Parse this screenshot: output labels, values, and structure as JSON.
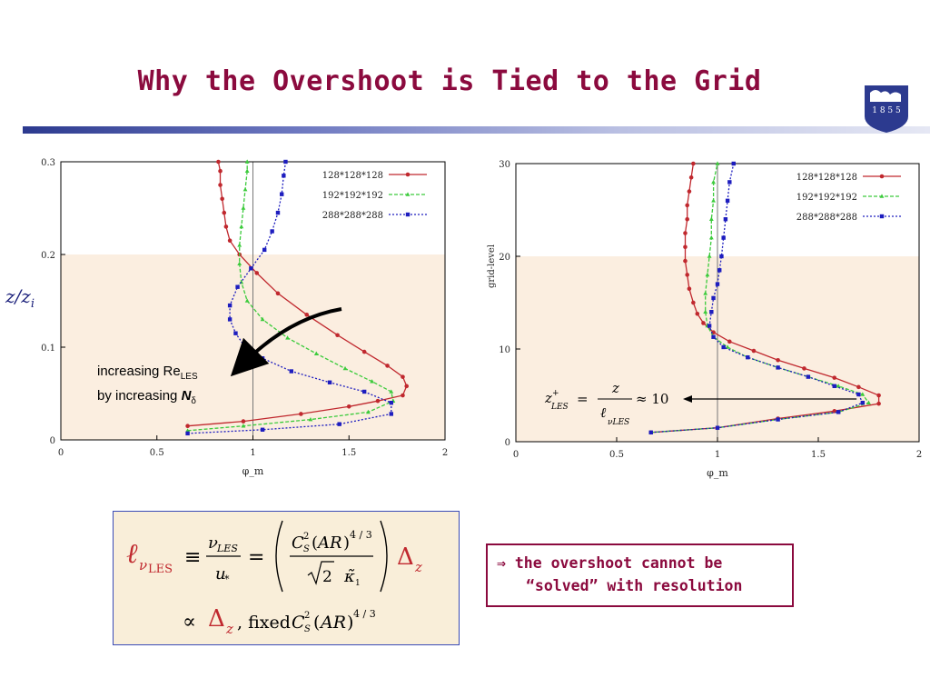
{
  "slide": {
    "title": "Why the Overshoot is Tied to the Grid",
    "seal_text": "1 8 5 5",
    "side_label_z": "z/z",
    "side_label_i": "i",
    "annotation_line1": "increasing Re",
    "annotation_sub1": "LES",
    "annotation_line2": "by increasing ",
    "annotation_bold2": "N",
    "annotation_sub2": "δ",
    "note_line1": "⇒ the overshoot cannot be",
    "note_line2": "“solved” with resolution",
    "colors": {
      "title": "#8b0a3e",
      "band": "#fbeee0",
      "red": "#c0282e",
      "green": "#3ccb3c",
      "blue": "#1d1dbf"
    }
  },
  "chart_data": [
    {
      "type": "line",
      "xlabel": "φ_m",
      "ylabel": "",
      "xlim": [
        0,
        2
      ],
      "ylim": [
        0,
        0.3
      ],
      "xticks": [
        "0",
        "0.5",
        "1",
        "1.5",
        "2"
      ],
      "yticks": [
        "0",
        "0.1",
        "0.2",
        "0.3"
      ],
      "grid": false,
      "legend": "top-right",
      "shaded_band": [
        0,
        0.2
      ],
      "vertical_line_x": 1,
      "series": [
        {
          "name": "128*128*128",
          "color": "#c0282e",
          "style": "solid",
          "points": [
            [
              0.66,
              0.015
            ],
            [
              0.95,
              0.02
            ],
            [
              1.25,
              0.028
            ],
            [
              1.5,
              0.036
            ],
            [
              1.65,
              0.042
            ],
            [
              1.78,
              0.048
            ],
            [
              1.8,
              0.058
            ],
            [
              1.78,
              0.068
            ],
            [
              1.7,
              0.08
            ],
            [
              1.58,
              0.095
            ],
            [
              1.44,
              0.113
            ],
            [
              1.28,
              0.135
            ],
            [
              1.13,
              0.158
            ],
            [
              1.02,
              0.18
            ],
            [
              0.93,
              0.2
            ],
            [
              0.88,
              0.215
            ],
            [
              0.86,
              0.23
            ],
            [
              0.85,
              0.245
            ],
            [
              0.84,
              0.26
            ],
            [
              0.83,
              0.275
            ],
            [
              0.83,
              0.29
            ],
            [
              0.82,
              0.3
            ]
          ]
        },
        {
          "name": "192*192*192",
          "color": "#3ccb3c",
          "style": "dashed",
          "points": [
            [
              0.66,
              0.01
            ],
            [
              0.95,
              0.015
            ],
            [
              1.3,
              0.022
            ],
            [
              1.6,
              0.03
            ],
            [
              1.73,
              0.042
            ],
            [
              1.72,
              0.052
            ],
            [
              1.62,
              0.063
            ],
            [
              1.48,
              0.077
            ],
            [
              1.33,
              0.093
            ],
            [
              1.18,
              0.11
            ],
            [
              1.05,
              0.13
            ],
            [
              0.97,
              0.15
            ],
            [
              0.94,
              0.17
            ],
            [
              0.93,
              0.19
            ],
            [
              0.93,
              0.21
            ],
            [
              0.94,
              0.23
            ],
            [
              0.95,
              0.25
            ],
            [
              0.96,
              0.27
            ],
            [
              0.97,
              0.29
            ],
            [
              0.97,
              0.3
            ]
          ]
        },
        {
          "name": "288*288*288",
          "color": "#1d1dbf",
          "style": "dotted",
          "points": [
            [
              0.66,
              0.007
            ],
            [
              1.05,
              0.011
            ],
            [
              1.45,
              0.017
            ],
            [
              1.72,
              0.028
            ],
            [
              1.72,
              0.04
            ],
            [
              1.58,
              0.052
            ],
            [
              1.4,
              0.062
            ],
            [
              1.2,
              0.074
            ],
            [
              1.05,
              0.088
            ],
            [
              0.96,
              0.1
            ],
            [
              0.91,
              0.115
            ],
            [
              0.88,
              0.13
            ],
            [
              0.88,
              0.145
            ],
            [
              0.92,
              0.165
            ],
            [
              0.99,
              0.185
            ],
            [
              1.06,
              0.205
            ],
            [
              1.1,
              0.225
            ],
            [
              1.13,
              0.245
            ],
            [
              1.15,
              0.265
            ],
            [
              1.16,
              0.285
            ],
            [
              1.17,
              0.3
            ]
          ]
        }
      ]
    },
    {
      "type": "line",
      "xlabel": "φ_m",
      "ylabel": "grid-level",
      "xlim": [
        0,
        2
      ],
      "ylim": [
        0,
        30
      ],
      "xticks": [
        "0",
        "0.5",
        "1",
        "1.5",
        "2"
      ],
      "yticks": [
        "0",
        "10",
        "20",
        "30"
      ],
      "grid": false,
      "legend": "top-right",
      "shaded_band": [
        0,
        20
      ],
      "vertical_line_x": 1,
      "series": [
        {
          "name": "128*128*128",
          "color": "#c0282e",
          "style": "solid",
          "points": [
            [
              0.67,
              1
            ],
            [
              1.0,
              1.5
            ],
            [
              1.3,
              2.5
            ],
            [
              1.58,
              3.3
            ],
            [
              1.8,
              4.1
            ],
            [
              1.8,
              5
            ],
            [
              1.7,
              5.9
            ],
            [
              1.58,
              6.9
            ],
            [
              1.43,
              7.9
            ],
            [
              1.3,
              8.8
            ],
            [
              1.18,
              9.8
            ],
            [
              1.06,
              10.8
            ],
            [
              0.98,
              11.8
            ],
            [
              0.93,
              12.8
            ],
            [
              0.9,
              13.8
            ],
            [
              0.88,
              15
            ],
            [
              0.86,
              16.5
            ],
            [
              0.85,
              18
            ],
            [
              0.84,
              19.5
            ],
            [
              0.84,
              21
            ],
            [
              0.84,
              22.5
            ],
            [
              0.85,
              24
            ],
            [
              0.85,
              25.5
            ],
            [
              0.86,
              27
            ],
            [
              0.87,
              28.5
            ],
            [
              0.88,
              30
            ]
          ]
        },
        {
          "name": "192*192*192",
          "color": "#3ccb3c",
          "style": "dashed",
          "points": [
            [
              0.67,
              1
            ],
            [
              1.0,
              1.5
            ],
            [
              1.3,
              2.4
            ],
            [
              1.6,
              3.2
            ],
            [
              1.75,
              4.2
            ],
            [
              1.72,
              5.1
            ],
            [
              1.6,
              6
            ],
            [
              1.45,
              7
            ],
            [
              1.3,
              8
            ],
            [
              1.15,
              9.1
            ],
            [
              1.05,
              10.2
            ],
            [
              0.98,
              11.3
            ],
            [
              0.95,
              12.5
            ],
            [
              0.94,
              14
            ],
            [
              0.94,
              16
            ],
            [
              0.95,
              18
            ],
            [
              0.96,
              20
            ],
            [
              0.97,
              22
            ],
            [
              0.97,
              24
            ],
            [
              0.98,
              26
            ],
            [
              0.98,
              28
            ],
            [
              1.0,
              30
            ]
          ]
        },
        {
          "name": "288*288*288",
          "color": "#1d1dbf",
          "style": "dotted",
          "points": [
            [
              0.67,
              1
            ],
            [
              1.0,
              1.5
            ],
            [
              1.3,
              2.4
            ],
            [
              1.6,
              3.2
            ],
            [
              1.72,
              4.2
            ],
            [
              1.7,
              5.1
            ],
            [
              1.58,
              6
            ],
            [
              1.45,
              7
            ],
            [
              1.3,
              8
            ],
            [
              1.15,
              9.1
            ],
            [
              1.03,
              10.2
            ],
            [
              0.98,
              11.3
            ],
            [
              0.96,
              12.5
            ],
            [
              0.97,
              14
            ],
            [
              0.98,
              15.5
            ],
            [
              1.0,
              17
            ],
            [
              1.01,
              18.5
            ],
            [
              1.02,
              20
            ],
            [
              1.03,
              22
            ],
            [
              1.04,
              24
            ],
            [
              1.05,
              26
            ],
            [
              1.06,
              28
            ],
            [
              1.08,
              30
            ]
          ]
        }
      ],
      "annotation": "z⁺_LES = z / ℓ_νLES ≈ 10"
    }
  ]
}
